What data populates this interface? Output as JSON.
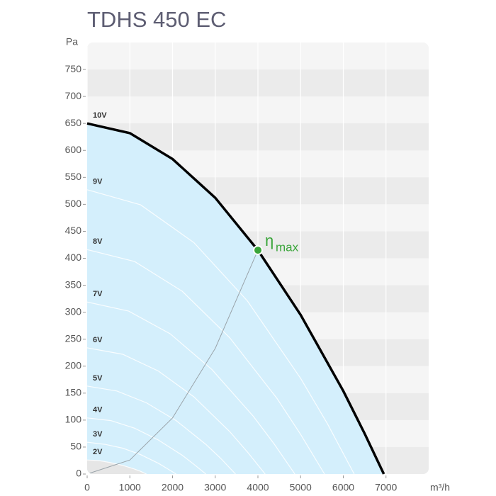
{
  "chart_data": {
    "type": "line",
    "title": "TDHS 450 EC",
    "y_label": "Pa",
    "x_label": "m³/h",
    "xlim": [
      0,
      8000
    ],
    "ylim": [
      0,
      800
    ],
    "xticks": [
      0,
      1000,
      2000,
      3000,
      4000,
      5000,
      6000,
      7000
    ],
    "yticks": [
      0,
      50,
      100,
      150,
      200,
      250,
      300,
      350,
      400,
      450,
      500,
      550,
      600,
      650,
      700,
      750
    ],
    "grid": "bands",
    "area_color": "#d4effc",
    "low_area_color": "#e6e6e6",
    "series": [
      {
        "name": "10V",
        "color": "#000000",
        "x": [
          0,
          1000,
          2000,
          3000,
          4000,
          5000,
          6000,
          6500,
          6950
        ],
        "values": [
          650,
          632,
          584,
          512,
          415,
          295,
          154,
          75,
          0
        ]
      },
      {
        "name": "9V",
        "color": "#ffffff",
        "x": [
          0,
          1251,
          2502,
          3753,
          5004,
          5630,
          6255
        ],
        "values": [
          527,
          499,
          429,
          321,
          177,
          93,
          0
        ]
      },
      {
        "name": "8V",
        "color": "#ffffff",
        "x": [
          0,
          1112,
          2224,
          3336,
          4448,
          5004,
          5560
        ],
        "values": [
          416,
          394,
          339,
          253,
          140,
          73,
          0
        ]
      },
      {
        "name": "7V",
        "color": "#ffffff",
        "x": [
          0,
          973,
          1946,
          2919,
          3892,
          4379,
          4865
        ],
        "values": [
          319,
          302,
          260,
          194,
          107,
          56,
          0
        ]
      },
      {
        "name": "6V",
        "color": "#ffffff",
        "x": [
          0,
          834,
          1668,
          2502,
          3336,
          3753,
          4170
        ],
        "values": [
          234,
          222,
          191,
          143,
          79,
          41,
          0
        ]
      },
      {
        "name": "5V",
        "color": "#ffffff",
        "x": [
          0,
          695,
          1390,
          2085,
          2780,
          3128,
          3475
        ],
        "values": [
          163,
          154,
          132,
          99,
          55,
          29,
          0
        ]
      },
      {
        "name": "4V",
        "color": "#ffffff",
        "x": [
          0,
          556,
          1112,
          1668,
          2224,
          2502,
          2780
        ],
        "values": [
          104,
          99,
          85,
          63,
          35,
          18,
          0
        ]
      },
      {
        "name": "3V",
        "color": "#ffffff",
        "x": [
          0,
          417,
          834,
          1251,
          1668,
          1877,
          2085
        ],
        "values": [
          59,
          55,
          48,
          36,
          20,
          10,
          0
        ]
      },
      {
        "name": "2V",
        "color": "#ffffff",
        "x": [
          0,
          278,
          556,
          834,
          1112,
          1251,
          1390
        ],
        "values": [
          26,
          25,
          21,
          16,
          9,
          5,
          0
        ]
      }
    ],
    "efficiency_line": {
      "color": "#9aa4aa",
      "x": [
        0,
        1000,
        2000,
        3000,
        4000
      ],
      "values": [
        0,
        26,
        104,
        233,
        415
      ]
    },
    "efficiency_point": {
      "symbol": "η",
      "subscript": "max",
      "color": "#3aa53a",
      "x": 4000,
      "value": 415
    }
  }
}
